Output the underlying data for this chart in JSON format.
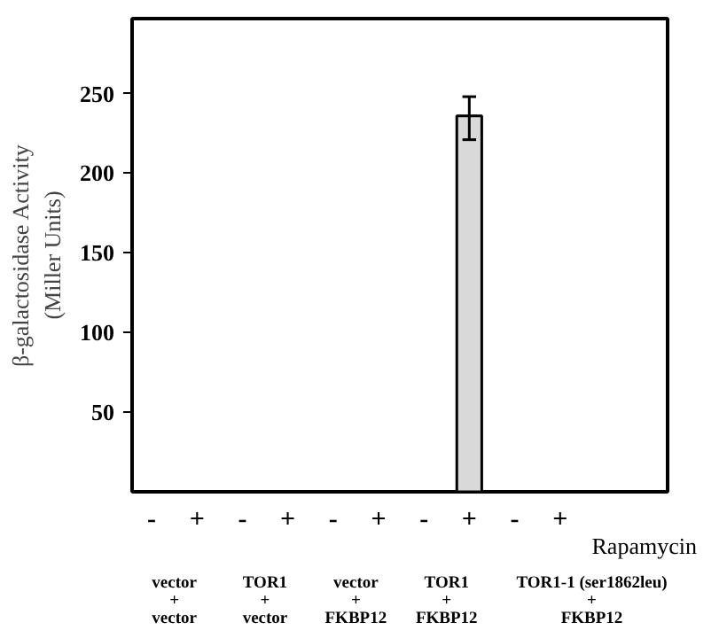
{
  "chart_data": {
    "type": "bar",
    "ylabel": "β-galactosidase Activity\n(Miller Units)",
    "xlabel": "Rapamycin",
    "categories": [
      "-",
      "+",
      "-",
      "+",
      "-",
      "+",
      "-",
      "+",
      "-",
      "+"
    ],
    "values": [
      null,
      null,
      null,
      null,
      null,
      null,
      null,
      236,
      null,
      null
    ],
    "errors": [
      null,
      null,
      null,
      null,
      null,
      null,
      null,
      [
        221,
        248
      ],
      null,
      null
    ],
    "color": "#d9d9d9",
    "ylim": [
      0,
      297
    ],
    "yticks": [
      50,
      100,
      150,
      200,
      250
    ],
    "grid": false,
    "annotations": [
      "vector\n+\nvector",
      "TOR1\n+\nvector",
      "vector\n+\nFKBP12",
      "TOR1\n+\nFKBP12",
      "TOR1-1 (ser1862leu)\n+\nFKBP12"
    ]
  }
}
